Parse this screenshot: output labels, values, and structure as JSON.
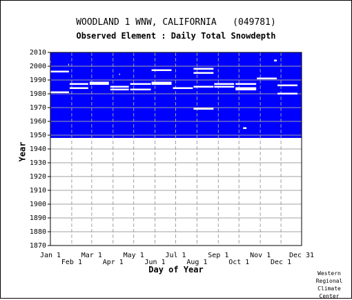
{
  "title": "WOODLAND 1 WNW, CALIFORNIA   (049781)",
  "subtitle": "Observed Element : Daily Total Snowdepth",
  "credit": [
    "Western",
    "Regional",
    "Climate",
    "Center"
  ],
  "chart_data": {
    "type": "heatmap",
    "xlabel": "Day of Year",
    "ylabel": "Year",
    "ylim": [
      1870,
      2010
    ],
    "xlim": [
      1,
      366
    ],
    "x_ticks_top_row": [
      {
        "label": "Jan 1",
        "day": 1
      },
      {
        "label": "Mar 1",
        "day": 61
      },
      {
        "label": "May 1",
        "day": 122
      },
      {
        "label": "Jul 1",
        "day": 183
      },
      {
        "label": "Sep 1",
        "day": 245
      },
      {
        "label": "Nov 1",
        "day": 306
      },
      {
        "label": "Dec 31",
        "day": 366
      }
    ],
    "x_ticks_bottom_row": [
      {
        "label": "Feb 1",
        "day": 32
      },
      {
        "label": "Apr 1",
        "day": 92
      },
      {
        "label": "Jun 1",
        "day": 153
      },
      {
        "label": "Aug 1",
        "day": 214
      },
      {
        "label": "Oct 1",
        "day": 275
      },
      {
        "label": "Dec 1",
        "day": 336
      }
    ],
    "y_ticks": [
      1870,
      1880,
      1890,
      1900,
      1910,
      1920,
      1930,
      1940,
      1950,
      1960,
      1970,
      1980,
      1990,
      2000,
      2010
    ],
    "grid": true,
    "colors": {
      "data": "#0000ff",
      "missing": "#ffffff",
      "grid": "#a0a0a0"
    },
    "data_coverage": {
      "start_year": 1948,
      "end_year": 2010
    },
    "missing_segments": [
      {
        "year": 2003,
        "start_day": 1,
        "end_day": 2
      },
      {
        "year": 2001,
        "start_day": 27,
        "end_day": 28
      },
      {
        "year": 1996,
        "start_day": 1,
        "end_day": 28
      },
      {
        "year": 1981,
        "start_day": 1,
        "end_day": 28
      },
      {
        "year": 1987,
        "start_day": 29,
        "end_day": 56
      },
      {
        "year": 1984,
        "start_day": 29,
        "end_day": 56
      },
      {
        "year": 1987,
        "start_day": 58,
        "end_day": 86
      },
      {
        "year": 1988,
        "start_day": 58,
        "end_day": 86
      },
      {
        "year": 1994,
        "start_day": 101,
        "end_day": 102
      },
      {
        "year": 1985,
        "start_day": 88,
        "end_day": 115
      },
      {
        "year": 1983,
        "start_day": 88,
        "end_day": 115
      },
      {
        "year": 1987,
        "start_day": 117,
        "end_day": 147
      },
      {
        "year": 1983,
        "start_day": 117,
        "end_day": 147
      },
      {
        "year": 1997,
        "start_day": 148,
        "end_day": 177
      },
      {
        "year": 1988,
        "start_day": 148,
        "end_day": 177
      },
      {
        "year": 1987,
        "start_day": 148,
        "end_day": 177
      },
      {
        "year": 1984,
        "start_day": 179,
        "end_day": 208
      },
      {
        "year": 1998,
        "start_day": 209,
        "end_day": 238
      },
      {
        "year": 1995,
        "start_day": 209,
        "end_day": 238
      },
      {
        "year": 1985,
        "start_day": 209,
        "end_day": 238
      },
      {
        "year": 1969,
        "start_day": 209,
        "end_day": 238
      },
      {
        "year": 1987,
        "start_day": 239,
        "end_day": 268
      },
      {
        "year": 1985,
        "start_day": 239,
        "end_day": 268
      },
      {
        "year": 1987,
        "start_day": 270,
        "end_day": 300
      },
      {
        "year": 1984,
        "start_day": 270,
        "end_day": 300
      },
      {
        "year": 1983,
        "start_day": 270,
        "end_day": 300
      },
      {
        "year": 1955,
        "start_day": 281,
        "end_day": 286
      },
      {
        "year": 2004,
        "start_day": 326,
        "end_day": 330
      },
      {
        "year": 1991,
        "start_day": 301,
        "end_day": 330
      },
      {
        "year": 1986,
        "start_day": 331,
        "end_day": 360
      },
      {
        "year": 1980,
        "start_day": 331,
        "end_day": 360
      }
    ]
  }
}
